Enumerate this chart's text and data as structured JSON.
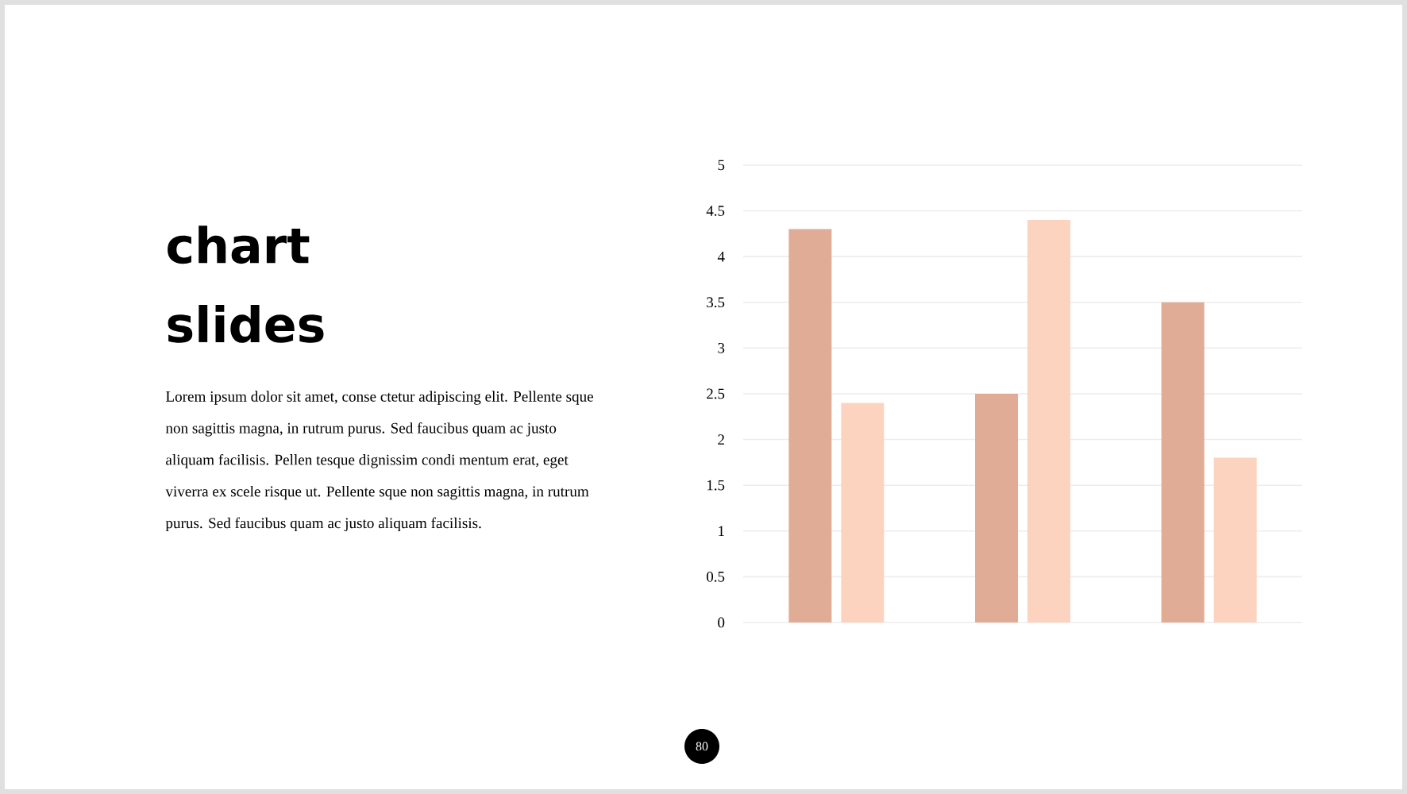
{
  "chart_data": {
    "type": "bar",
    "title": "chart slides",
    "annotations": [
      "Lorem ipsum dolor sit amet, conse ctetur adipiscing elit. Pellente sque non sagittis magna, in rutrum purus. Sed faucibus quam ac justo aliquam facilisis.  Pellen tesque dignissim condi mentum erat, eget viverra ex scele risque ut. Pellente sque non sagittis magna, in rutrum purus. Sed faucibus quam ac justo aliquam facilisis.",
      "80"
    ],
    "categories": [
      null,
      null,
      null
    ],
    "series": [
      {
        "color": "#e0ac96",
        "values": [
          4.3,
          2.5,
          3.5
        ]
      },
      {
        "color": "#fcd3bf",
        "values": [
          2.4,
          4.4,
          1.8
        ]
      }
    ],
    "ylim": [
      0,
      5
    ],
    "yticks": [
      0,
      0.5,
      1,
      1.5,
      2,
      2.5,
      3,
      3.5,
      4,
      4.5,
      5
    ],
    "grid": "y"
  }
}
